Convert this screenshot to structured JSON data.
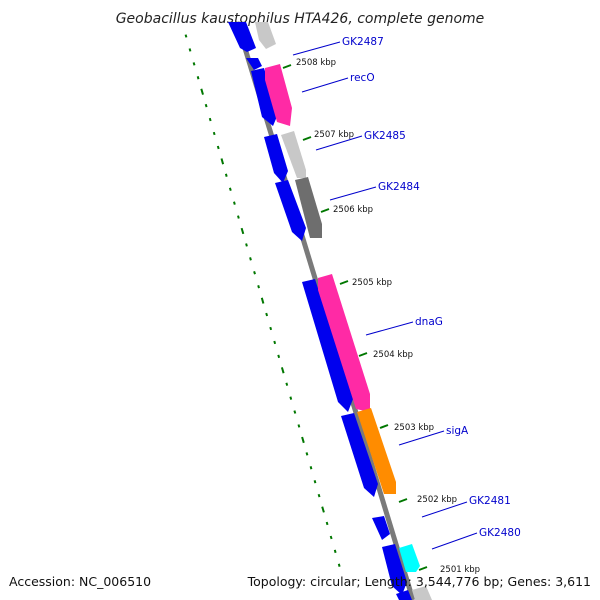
{
  "title": "Geobacillus kaustophilus HTA426, complete genome",
  "footer": {
    "accession": "Accession: NC_006510",
    "topology": "Topology: circular; Length: 3,544,776 bp; Genes: 3,611"
  },
  "ticks": [
    "2508 kbp",
    "2507 kbp",
    "2506 kbp",
    "2505 kbp",
    "2504 kbp",
    "2503 kbp",
    "2502 kbp",
    "2501 kbp"
  ],
  "genes": [
    {
      "label": "GK2487",
      "color": "#c8c8c8"
    },
    {
      "label": "recO",
      "color": "#ff2aa5"
    },
    {
      "label": "GK2485",
      "color": "#c8c8c8"
    },
    {
      "label": "GK2484",
      "color": "#6e6e6e"
    },
    {
      "label": "dnaG",
      "color": "#ff2aa5"
    },
    {
      "label": "sigA",
      "color": "#ff8c00"
    },
    {
      "label": "GK2481",
      "color": ""
    },
    {
      "label": "GK2480",
      "color": "#00ffff"
    }
  ],
  "colors": {
    "backbone": "#7a7a7a",
    "cds_forward": "#0000ee",
    "tick_green": "#007700",
    "label_line": "#0000cc"
  }
}
